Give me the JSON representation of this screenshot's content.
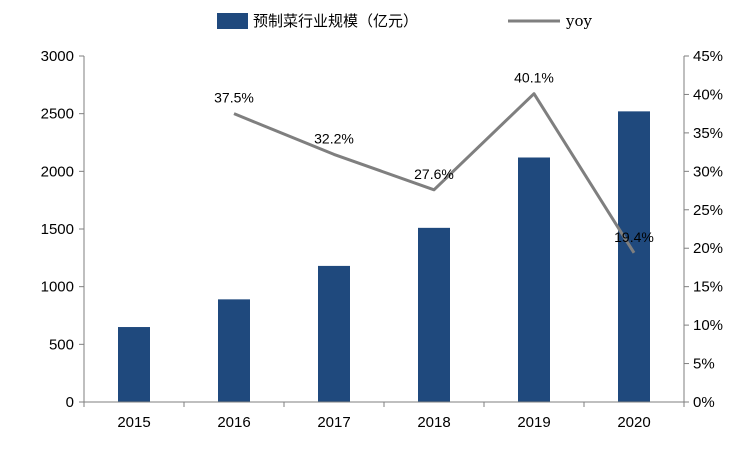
{
  "chart_data": {
    "type": "bar",
    "categories": [
      "2015",
      "2016",
      "2017",
      "2018",
      "2019",
      "2020"
    ],
    "series": [
      {
        "name": "预制菜行业规模（亿元）",
        "kind": "bar",
        "axis": "left",
        "color": "#1f497d",
        "values": [
          650,
          890,
          1180,
          1510,
          2120,
          2520
        ]
      },
      {
        "name": "yoy",
        "kind": "line",
        "axis": "right",
        "color": "#7f7f7f",
        "values": [
          null,
          37.5,
          32.2,
          27.6,
          40.1,
          19.4
        ],
        "labels": [
          "",
          "37.5%",
          "32.2%",
          "27.6%",
          "40.1%",
          "19.4%"
        ]
      }
    ],
    "y_left": {
      "ylim": [
        0,
        3000
      ],
      "ticks": [
        0,
        500,
        1000,
        1500,
        2000,
        2500,
        3000
      ]
    },
    "y_right": {
      "ylim": [
        0,
        45
      ],
      "ticks": [
        0,
        5,
        10,
        15,
        20,
        25,
        30,
        35,
        40,
        45
      ],
      "tick_labels": [
        "0%",
        "5%",
        "10%",
        "15%",
        "20%",
        "25%",
        "30%",
        "35%",
        "40%",
        "45%"
      ]
    },
    "legend": {
      "position": "top-center"
    },
    "grid": false
  }
}
